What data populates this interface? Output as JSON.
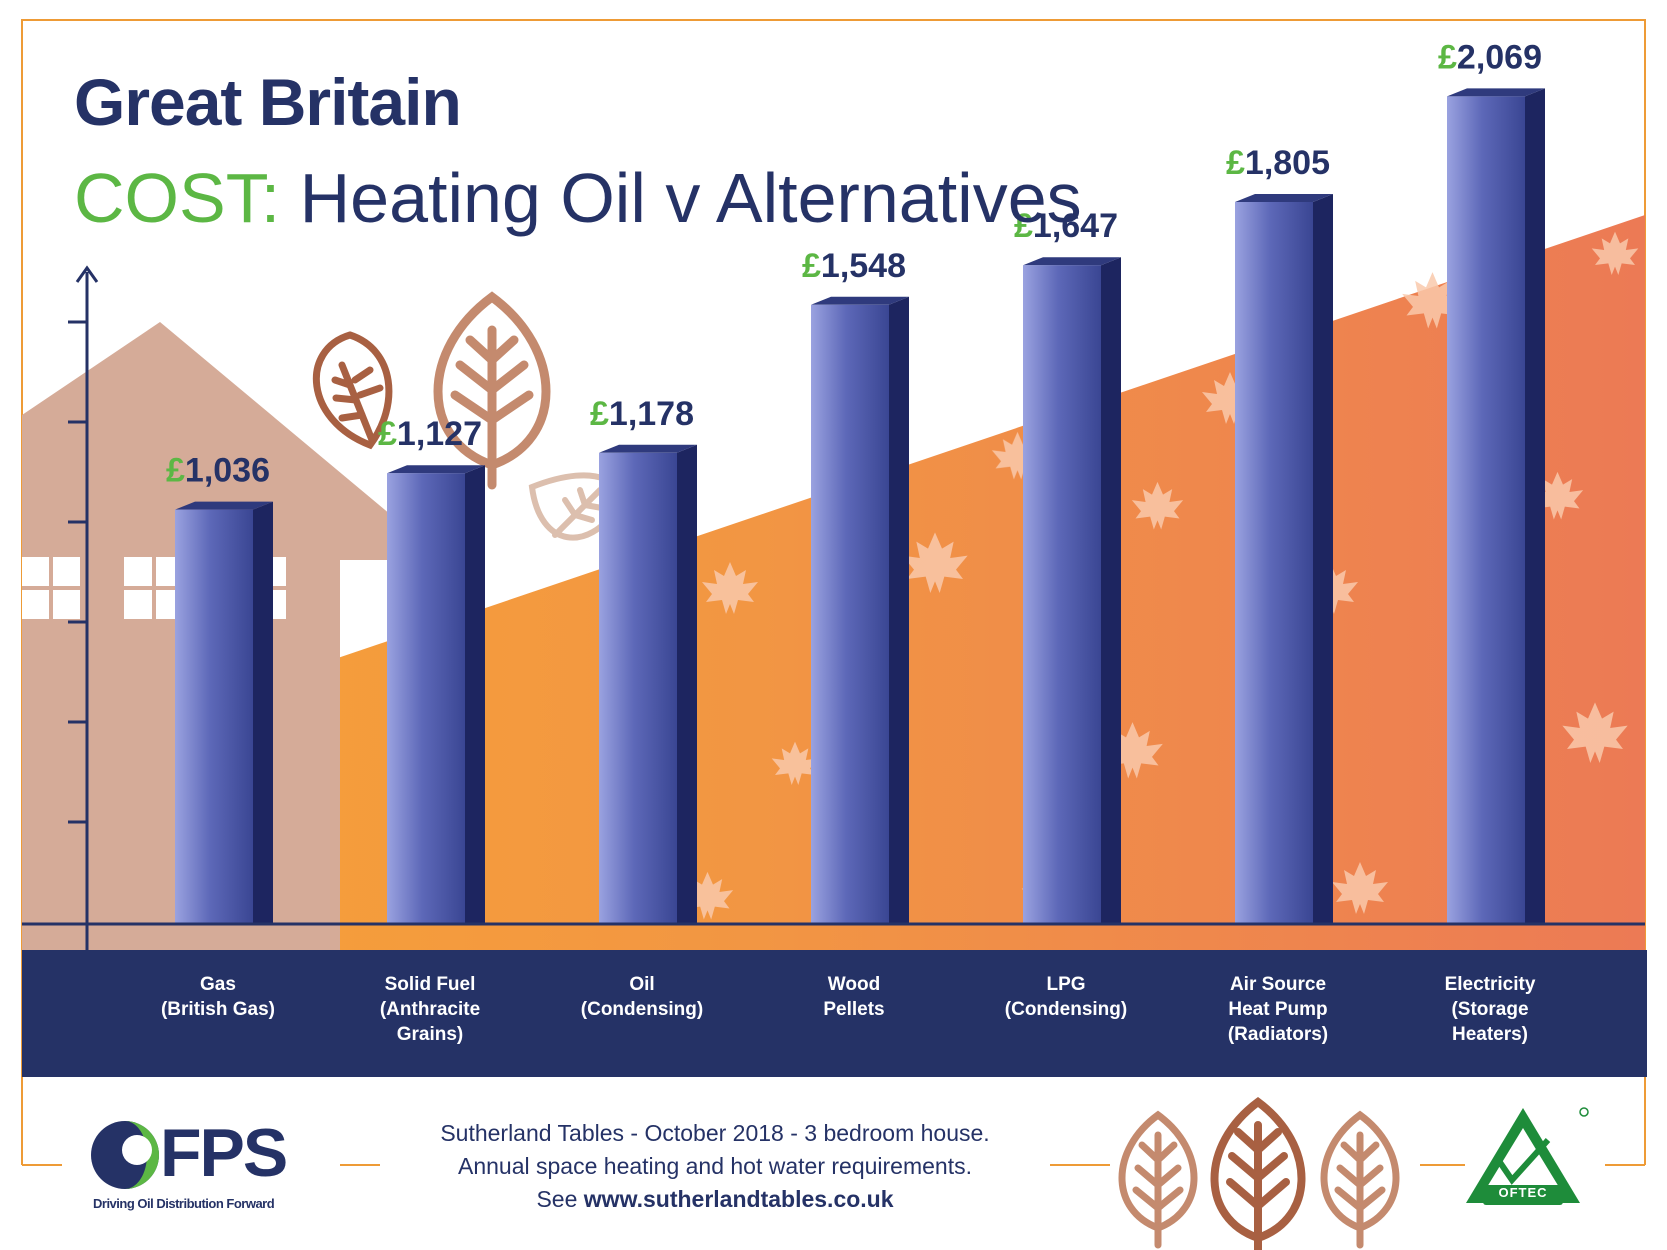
{
  "header": {
    "title": "Great Britain",
    "subtitle_prefix": "COST:",
    "subtitle_rest": "Heating Oil v Alternatives"
  },
  "colors": {
    "navy": "#253266",
    "green": "#5cb744",
    "orange_light": "#f7a236",
    "orange_dark": "#ec7a55",
    "house": "#d5ab98",
    "leaf_dark": "#a86042",
    "leaf_light": "#d5ab98"
  },
  "chart_data": {
    "type": "bar",
    "title": "COST: Heating Oil v Alternatives",
    "categories": [
      "Gas\n(British Gas)",
      "Solid Fuel\n(Anthracite\nGrains)",
      "Oil\n(Condensing)",
      "Wood\nPellets",
      "LPG\n(Condensing)",
      "Air Source\nHeat Pump\n(Radiators)",
      "Electricity\n(Storage\nHeaters)"
    ],
    "values": [
      1036,
      1127,
      1178,
      1548,
      1647,
      1805,
      2069
    ],
    "value_labels": [
      "£1,036",
      "£1,127",
      "£1,178",
      "£1,548",
      "£1,647",
      "£1,805",
      "£2,069"
    ],
    "ylim": [
      0,
      2400
    ],
    "xlabel": "",
    "ylabel": "",
    "grid": false,
    "legend": "none",
    "bar_color": "#3d4a96"
  },
  "footer": {
    "line1": "Sutherland Tables - October 2018 - 3 bedroom house.",
    "line2": "Annual space heating and hot water requirements.",
    "line3_prefix": "See ",
    "line3_url": "www.sutherlandtables.co.uk",
    "fps_logo_text": "FPS",
    "fps_tagline": "Driving Oil Distribution Forward",
    "oftec_logo_text": "OFTEC"
  }
}
